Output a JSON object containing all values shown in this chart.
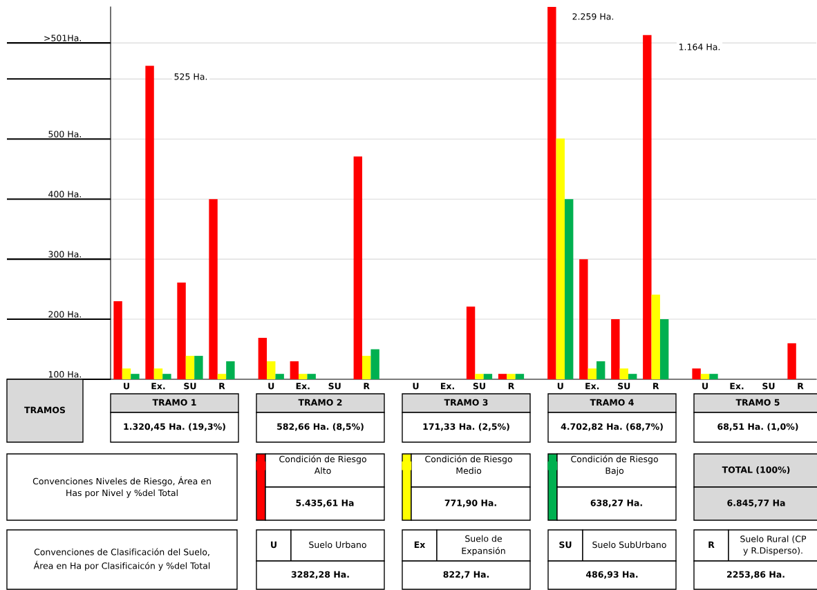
{
  "chart_data": {
    "type": "bar",
    "categories": [
      "U",
      "Ex.",
      "SU",
      "R",
      "U",
      "Ex.",
      "SU",
      "R",
      "U",
      "Ex.",
      "SU",
      "R",
      "U",
      "Ex.",
      "SU",
      "R",
      "U",
      "Ex.",
      "SU",
      "R"
    ],
    "series": [
      {
        "name": "Condición de Riesgo\nAlto",
        "color": "#ff0000",
        "values": [
          230,
          622,
          261,
          400,
          169,
          130,
          null,
          471,
          null,
          null,
          221,
          109,
          720,
          300,
          200,
          673,
          118,
          null,
          null,
          160
        ]
      },
      {
        "name": "Condición de Riesgo\nMedio",
        "color": "#ffff00",
        "values": [
          118,
          118,
          139,
          109,
          130,
          109,
          null,
          139,
          null,
          null,
          109,
          109,
          501,
          118,
          118,
          241,
          109,
          null,
          null,
          null
        ]
      },
      {
        "name": "Condición de Riesgo\nBajo",
        "color": "#00b050",
        "values": [
          109,
          109,
          139,
          130,
          109,
          109,
          null,
          150,
          null,
          null,
          109,
          109,
          400,
          130,
          109,
          200,
          109,
          null,
          null,
          null
        ]
      }
    ],
    "ylim": [
      100,
      720
    ],
    "yticks": [
      {
        "value": 100,
        "label": "100 Ha."
      },
      {
        "value": 200,
        "label": "200 Ha."
      },
      {
        "value": 300,
        "label": "300 Ha."
      },
      {
        "value": 400,
        "label": "400 Ha."
      },
      {
        "value": 500,
        "label": "500 Ha."
      },
      {
        "value": 600,
        "label": null
      },
      {
        "value": 660,
        "label": ">501Ha."
      }
    ],
    "grid": true,
    "legend": "bottom",
    "annotations": [
      "525 Ha.",
      "2.259 Ha.",
      "1.164 Ha.",
      "TRAMOS",
      "TRAMO 1",
      "TRAMO 2",
      "TRAMO 3",
      "TRAMO 4",
      "TRAMO 5",
      "1.320,45 Ha. (19,3%)",
      "582,66 Ha. (8,5%)",
      "171,33 Ha. (2,5%)",
      "4.702,82 Ha. (68,7%)",
      "68,51 Ha. (1,0%)",
      "Convenciones Niveles de Riesgo, Área en\nHas por Nivel y %del Total",
      "5.435,61 Ha",
      "771,90 Ha.",
      "638,27 Ha.",
      "TOTAL (100%)",
      "6.845,77 Ha",
      "Convenciones de Clasificación del Suelo,\nÁrea en Ha por Clasificaicón y %del Total",
      "U",
      "Suelo Urbano",
      "Ex",
      "Suelo de\nExpansión",
      "SU",
      "Suelo SubUrbano",
      "R",
      "Suelo Rural (CP\ny R.Disperso).",
      "3282,28 Ha.",
      "822,7 Ha.",
      "486,93 Ha.",
      "2253,86 Ha."
    ]
  }
}
